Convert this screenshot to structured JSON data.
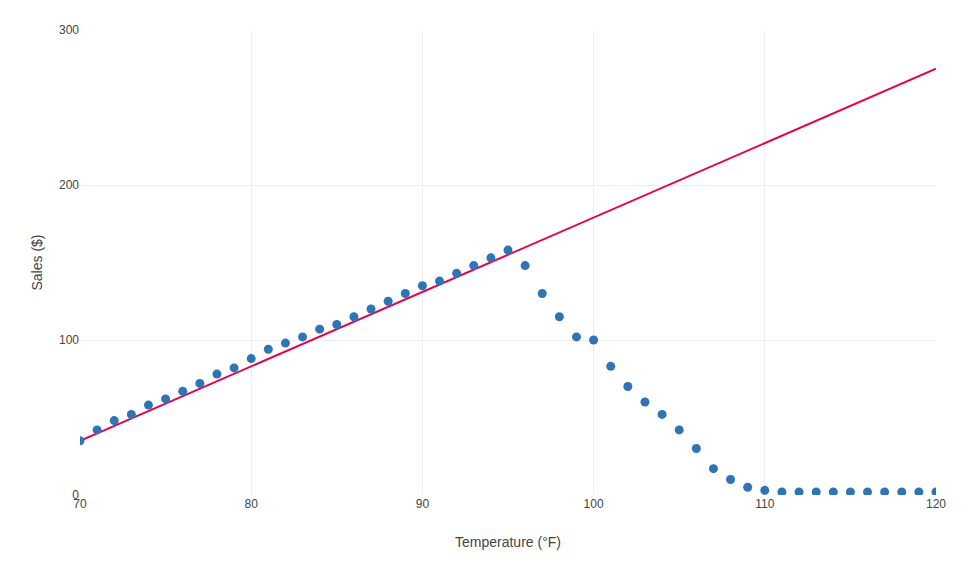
{
  "chart_data": {
    "type": "scatter",
    "xlabel": "Temperature (°F)",
    "ylabel": "Sales ($)",
    "xlim": [
      70,
      120
    ],
    "ylim": [
      0,
      300
    ],
    "xticks": [
      70,
      80,
      90,
      100,
      110,
      120
    ],
    "yticks": [
      0,
      100,
      200,
      300
    ],
    "grid": true,
    "series": [
      {
        "type": "line",
        "color": "#E8004C",
        "x": [
          70,
          120
        ],
        "values": [
          35,
          275
        ]
      },
      {
        "type": "scatter",
        "color": "#2E75B6",
        "x": [
          70,
          71,
          72,
          73,
          74,
          75,
          76,
          77,
          78,
          79,
          80,
          81,
          82,
          83,
          84,
          85,
          86,
          87,
          88,
          89,
          90,
          91,
          92,
          93,
          94,
          95,
          96,
          97,
          98,
          99,
          100,
          101,
          102,
          103,
          104,
          105,
          106,
          107,
          108,
          109,
          110,
          111,
          112,
          113,
          114,
          115,
          116,
          117,
          118,
          119,
          120
        ],
        "values": [
          35,
          42,
          48,
          52,
          58,
          62,
          67,
          72,
          78,
          82,
          88,
          94,
          98,
          102,
          107,
          110,
          115,
          120,
          125,
          130,
          135,
          138,
          143,
          148,
          153,
          158,
          148,
          130,
          115,
          102,
          100,
          83,
          70,
          60,
          52,
          42,
          30,
          17,
          10,
          5,
          3,
          2,
          2,
          2,
          2,
          2,
          2,
          2,
          2,
          2,
          2
        ]
      }
    ]
  }
}
